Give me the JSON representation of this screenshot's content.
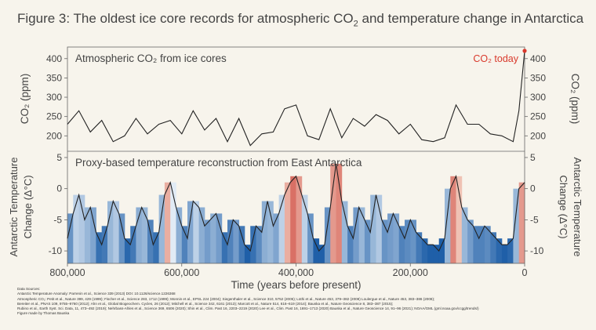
{
  "title": {
    "prefix": "Figure 3:  The oldest ice core records for atmospheric CO",
    "sub": "2",
    "suffix": " and temperature change in Antarctica"
  },
  "chart_data": [
    {
      "type": "line",
      "panel_label": "Atmospheric CO₂ from ice cores",
      "ylabel_left": "CO₂ (ppm)",
      "ylabel_right": "CO₂ (ppm)",
      "ylim": [
        160,
        430
      ],
      "yticks": [
        200,
        250,
        300,
        350,
        400
      ],
      "annotation": "CO₂ today",
      "today_value": 420,
      "x": [
        800000,
        780000,
        760000,
        740000,
        720000,
        700000,
        680000,
        660000,
        640000,
        620000,
        600000,
        580000,
        560000,
        540000,
        520000,
        500000,
        480000,
        460000,
        440000,
        420000,
        400000,
        380000,
        360000,
        340000,
        320000,
        300000,
        280000,
        260000,
        240000,
        220000,
        200000,
        180000,
        160000,
        140000,
        120000,
        100000,
        80000,
        60000,
        40000,
        20000,
        10000,
        0
      ],
      "values": [
        230,
        265,
        210,
        240,
        185,
        200,
        245,
        205,
        230,
        240,
        205,
        265,
        215,
        245,
        185,
        245,
        175,
        205,
        210,
        270,
        280,
        200,
        190,
        270,
        195,
        245,
        225,
        255,
        240,
        205,
        230,
        190,
        185,
        195,
        280,
        230,
        230,
        205,
        200,
        185,
        265,
        420
      ]
    },
    {
      "type": "area",
      "panel_label": "Proxy-based temperature reconstruction from East Antarctica",
      "ylabel_left": "Antarctic Temperature Change (Δ°C)",
      "ylabel_right": "Antarctic Temperature Change (Δ°C)",
      "ylim": [
        -12,
        6
      ],
      "yticks": [
        5,
        0,
        -5,
        -10
      ],
      "x": [
        800000,
        790000,
        780000,
        770000,
        760000,
        750000,
        740000,
        730000,
        720000,
        710000,
        700000,
        690000,
        680000,
        670000,
        660000,
        650000,
        640000,
        630000,
        620000,
        610000,
        600000,
        590000,
        580000,
        570000,
        560000,
        550000,
        540000,
        530000,
        520000,
        510000,
        500000,
        490000,
        480000,
        470000,
        460000,
        450000,
        440000,
        430000,
        420000,
        410000,
        400000,
        390000,
        380000,
        370000,
        360000,
        350000,
        340000,
        330000,
        320000,
        310000,
        300000,
        290000,
        280000,
        270000,
        260000,
        250000,
        240000,
        230000,
        220000,
        210000,
        200000,
        190000,
        180000,
        170000,
        160000,
        150000,
        140000,
        130000,
        120000,
        110000,
        100000,
        90000,
        80000,
        70000,
        60000,
        50000,
        40000,
        30000,
        20000,
        10000,
        0
      ],
      "values": [
        -8,
        -4,
        -1,
        -5,
        -3,
        -7,
        -9,
        -6,
        -2,
        -4,
        -8,
        -9,
        -6,
        -3,
        -5,
        -9,
        -7,
        -1,
        1,
        -3,
        -6,
        -8,
        -2,
        -3,
        -6,
        -5,
        -4,
        -7,
        -9,
        -5,
        -6,
        -9,
        -10,
        -6,
        -7,
        -2,
        -6,
        -4,
        -1,
        1,
        2,
        -1,
        -4,
        -8,
        -10,
        -9,
        -3,
        4,
        -2,
        -6,
        -8,
        -3,
        -5,
        -7,
        -1,
        -5,
        -7,
        -4,
        -6,
        -8,
        -5,
        -7,
        -8,
        -9,
        -9,
        -10,
        -8,
        0,
        2,
        -3,
        -5,
        -6,
        -8,
        -6,
        -7,
        -8,
        -9,
        -9,
        -8,
        0,
        1
      ]
    }
  ],
  "shared_x": {
    "label": "Time (years before present)",
    "ticks": [
      "800,000",
      "600,000",
      "400,000",
      "200,000",
      "0"
    ],
    "tick_values": [
      800000,
      600000,
      400000,
      200000,
      0
    ],
    "xlim": [
      800000,
      0
    ]
  },
  "colors": {
    "line": "#222222",
    "today_marker": "#d9392c",
    "cold": "#1f5fa8",
    "warm": "#c8322a",
    "text": "#444444"
  },
  "sources": [
    "Data Sources:",
    "Antarctic Temperature Anomaly: Parrenin et al., Science 339 (2013) DOI: 10.1126/science.1226368",
    "Atmospheric CO₂: Petit et al., Nature 399, 429 (1999); Fischer et al., Science 283, 1712 (1999); Monnin et al., EPSL 224 (2004); Siegenthaler et al., Science 310, 5752 (2005); Lüthi et al., Nature 453, 379–382 (2008) Loulergue et al., Nature 453, 383–386 (2008);",
    "Bereiter et al., PNAS 109, 9755–9760 (2012); Ahn et al., Global Biogeochem. Cycles, 26 (2012); Mitchell et al., Science 342, 6161 (2013); Marcott et al., Nature 514, 616–619 (2014); Bauska et al., Nature Geoscience 8, 383–387 (2015);",
    "Rubino et al., Earth Syst. Sci. Data, 11, 473–492 (2019); Nehrbass-Ahles et al., Science 369, 6506 (2020); Shin et al., Clim. Past 16, 2203–2219 (2020) Lee et al., Clim. Past 16, 1691–1713 (2020) Bauska et al., Nature Geoscience 14, 91–96 (2021); NOAA/GML (gml.noaa.gov/ccgg/trends/)",
    "Figure made by Thomas Bauska"
  ]
}
